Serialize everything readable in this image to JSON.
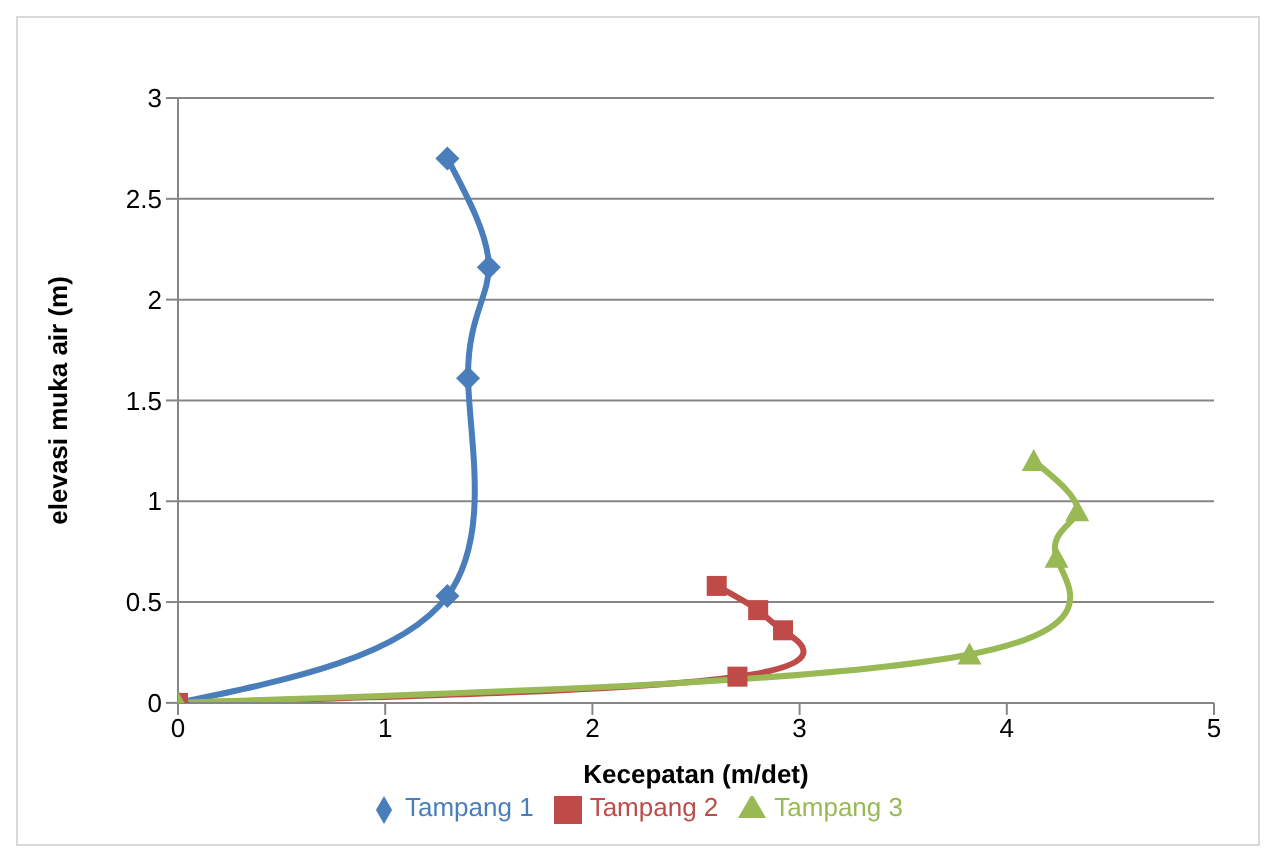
{
  "chart_data": {
    "type": "line",
    "xlabel": "Kecepatan (m/det)",
    "ylabel": "elevasi muka air  (m)",
    "xlim": [
      0,
      5
    ],
    "xticks": [
      0,
      1,
      2,
      3,
      4,
      5
    ],
    "ylim": [
      0,
      3
    ],
    "yticks": [
      0,
      0.5,
      1,
      1.5,
      2,
      2.5,
      3
    ],
    "grid": "y",
    "legend": "bottom",
    "line_style": "solid",
    "series": [
      {
        "name": "Tampang 1",
        "color": "#4a7ebb",
        "marker": "diamond",
        "x": [
          0,
          1.3,
          1.4,
          1.5,
          1.3
        ],
        "values": [
          0,
          0.53,
          1.61,
          2.16,
          2.7
        ]
      },
      {
        "name": "Tampang 2",
        "color": "#be4b48",
        "marker": "square",
        "x": [
          0,
          2.7,
          2.92,
          2.8,
          2.6
        ],
        "values": [
          0,
          0.13,
          0.36,
          0.46,
          0.58
        ]
      },
      {
        "name": "Tampang 3",
        "color": "#98b954",
        "marker": "triangle",
        "x": [
          0,
          3.82,
          4.24,
          4.34,
          4.13
        ],
        "values": [
          0,
          0.24,
          0.72,
          0.95,
          1.2
        ]
      }
    ]
  }
}
